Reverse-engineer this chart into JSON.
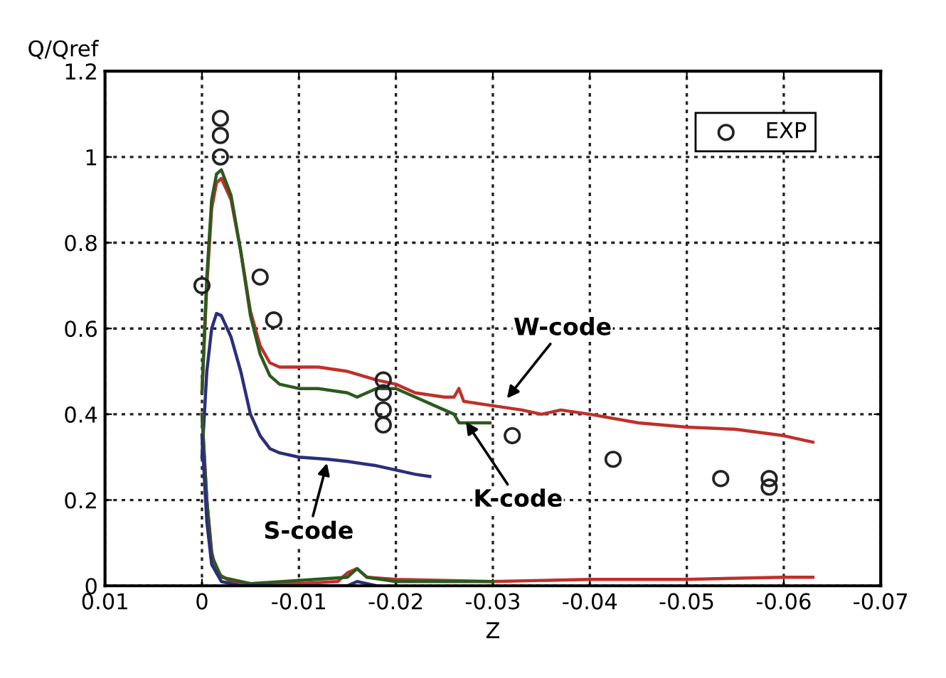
{
  "chart_data": {
    "type": "line",
    "xlabel": "Z",
    "ylabel": "Q/Qref",
    "xlim": [
      0.01,
      -0.07
    ],
    "ylim": [
      0,
      1.2
    ],
    "xticks": [
      0.01,
      0,
      -0.01,
      -0.02,
      -0.03,
      -0.04,
      -0.05,
      -0.06,
      -0.07
    ],
    "yticks": [
      0,
      0.2,
      0.4,
      0.6,
      0.8,
      1,
      1.2
    ],
    "grid": true,
    "legend": "top right",
    "line_style": "solid",
    "series": [
      {
        "type": "line",
        "color": "#c0302a",
        "x": [
          0,
          -0.0005,
          -0.001,
          -0.0015,
          -0.002,
          -0.003,
          -0.004,
          -0.005,
          -0.006,
          -0.007,
          -0.008,
          -0.01,
          -0.012,
          -0.015,
          -0.018,
          -0.02,
          -0.022,
          -0.025,
          -0.026,
          -0.0265,
          -0.027,
          -0.03,
          -0.033,
          -0.035,
          -0.037,
          -0.04,
          -0.045,
          -0.05,
          -0.055,
          -0.06,
          -0.063
        ],
        "values": [
          0.45,
          0.7,
          0.88,
          0.94,
          0.95,
          0.9,
          0.78,
          0.64,
          0.56,
          0.52,
          0.51,
          0.51,
          0.51,
          0.5,
          0.48,
          0.47,
          0.45,
          0.44,
          0.44,
          0.46,
          0.43,
          0.42,
          0.41,
          0.4,
          0.41,
          0.4,
          0.38,
          0.37,
          0.365,
          0.35,
          0.335
        ]
      },
      {
        "type": "line",
        "color": "#2d5a1e",
        "x": [
          0,
          -0.0005,
          -0.001,
          -0.0015,
          -0.002,
          -0.003,
          -0.004,
          -0.005,
          -0.006,
          -0.007,
          -0.008,
          -0.01,
          -0.012,
          -0.015,
          -0.016,
          -0.018,
          -0.02,
          -0.022,
          -0.025,
          -0.026,
          -0.0265,
          -0.028,
          -0.0297
        ],
        "values": [
          0.45,
          0.72,
          0.9,
          0.96,
          0.97,
          0.91,
          0.78,
          0.63,
          0.54,
          0.49,
          0.47,
          0.46,
          0.46,
          0.45,
          0.44,
          0.46,
          0.46,
          0.44,
          0.41,
          0.4,
          0.38,
          0.38,
          0.38
        ]
      },
      {
        "type": "line",
        "color": "#2a2f7a",
        "x": [
          0,
          -0.0005,
          -0.001,
          -0.0015,
          -0.002,
          -0.003,
          -0.004,
          -0.005,
          -0.006,
          -0.007,
          -0.008,
          -0.01,
          -0.013,
          -0.015,
          -0.018,
          -0.02,
          -0.022,
          -0.0235
        ],
        "values": [
          0.3,
          0.5,
          0.6,
          0.635,
          0.63,
          0.58,
          0.5,
          0.4,
          0.35,
          0.32,
          0.31,
          0.3,
          0.295,
          0.29,
          0.28,
          0.27,
          0.26,
          0.255
        ]
      },
      {
        "type": "line",
        "color": "#c0302a",
        "x": [
          0,
          -0.0005,
          -0.001,
          -0.0015,
          -0.003,
          -0.005,
          -0.01,
          -0.014,
          -0.015,
          -0.016,
          -0.017,
          -0.02,
          -0.03,
          -0.04,
          -0.05,
          -0.06,
          -0.063
        ],
        "values": [
          0.4,
          0.2,
          0.08,
          0.03,
          0.01,
          0.005,
          0.005,
          0.01,
          0.03,
          0.04,
          0.02,
          0.015,
          0.01,
          0.015,
          0.015,
          0.02,
          0.02
        ]
      },
      {
        "type": "line",
        "color": "#2d5a1e",
        "x": [
          0,
          -0.0005,
          -0.001,
          -0.002,
          -0.005,
          -0.015,
          -0.016,
          -0.017,
          -0.02,
          -0.03
        ],
        "values": [
          0.4,
          0.2,
          0.07,
          0.02,
          0.005,
          0.02,
          0.04,
          0.02,
          0.01,
          0.01
        ]
      },
      {
        "color": "#2a2f7a",
        "x": [
          0,
          -0.0005,
          -0.001,
          -0.002,
          -0.004,
          -0.015,
          -0.016,
          -0.018
        ],
        "values": [
          0.35,
          0.15,
          0.05,
          0.01,
          0,
          0,
          0.01,
          0
        ]
      },
      {
        "type": "scatter",
        "name": "EXP",
        "color": "#222222",
        "marker": "circle",
        "x": [
          0,
          -0.0019,
          -0.0019,
          -0.0019,
          -0.006,
          -0.0074,
          -0.0187,
          -0.0187,
          -0.0187,
          -0.0187,
          -0.032,
          -0.0424,
          -0.0535,
          -0.0585,
          -0.0585
        ],
        "values": [
          0.7,
          1.09,
          1.05,
          1.0,
          0.72,
          0.62,
          0.48,
          0.45,
          0.41,
          0.375,
          0.35,
          0.295,
          0.25,
          0.25,
          0.23
        ]
      }
    ],
    "annotations": [
      {
        "text": "W-code",
        "x": -0.0312,
        "y": 0.43
      },
      {
        "text": "K-code",
        "x": -0.027,
        "y": 0.39
      },
      {
        "text": "S-code",
        "x": -0.013,
        "y": 0.295
      }
    ]
  }
}
